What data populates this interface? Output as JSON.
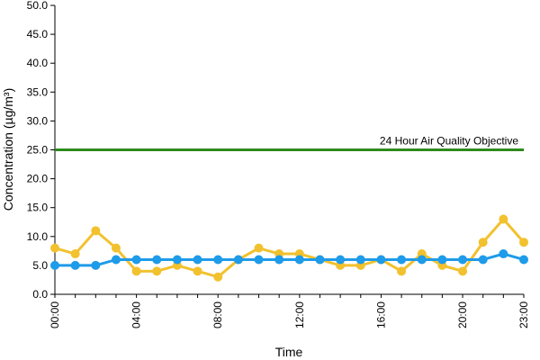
{
  "chart_data": {
    "type": "line",
    "xlabel": "Time",
    "ylabel": "Concentration (µg/m³)",
    "ylim": [
      0,
      50
    ],
    "y_ticks": [
      "0.0",
      "5.0",
      "10.0",
      "15.0",
      "20.0",
      "25.0",
      "30.0",
      "35.0",
      "40.0",
      "45.0",
      "50.0"
    ],
    "x_tick_labels": [
      "00:00",
      "04:00",
      "08:00",
      "12:00",
      "16:00",
      "20:00",
      "23:00"
    ],
    "x_tick_hours": [
      0,
      4,
      8,
      12,
      16,
      20,
      23
    ],
    "x_hours": [
      0,
      1,
      2,
      3,
      4,
      5,
      6,
      7,
      8,
      9,
      10,
      11,
      12,
      13,
      14,
      15,
      16,
      17,
      18,
      19,
      20,
      21,
      22,
      23
    ],
    "grid": false,
    "series": [
      {
        "color": "#f2c12e",
        "values": [
          8,
          7,
          11,
          8,
          4,
          4,
          5,
          4,
          3,
          6,
          8,
          7,
          7,
          6,
          5,
          5,
          6,
          4,
          7,
          5,
          4,
          9,
          13,
          9
        ]
      },
      {
        "color": "#1e9be9",
        "values": [
          5,
          5,
          5,
          6,
          6,
          6,
          6,
          6,
          6,
          6,
          6,
          6,
          6,
          6,
          6,
          6,
          6,
          6,
          6,
          6,
          6,
          6,
          7,
          6
        ]
      }
    ],
    "reference_line": {
      "value": 25,
      "label": "24 Hour Air Quality Objective",
      "color": "#2e8b1e"
    }
  }
}
